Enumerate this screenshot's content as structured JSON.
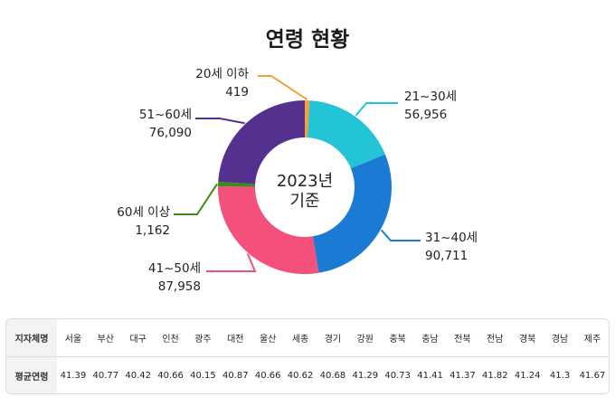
{
  "chart_data": {
    "type": "pie",
    "title": "연령 현황",
    "center_label": [
      "2023년",
      "기준"
    ],
    "series": [
      {
        "name": "20세 이하",
        "value": 419,
        "display": "419",
        "color": "#f5a13a"
      },
      {
        "name": "21~30세",
        "value": 56956,
        "display": "56,956",
        "color": "#22c4d6"
      },
      {
        "name": "31~40세",
        "value": 90711,
        "display": "90,711",
        "color": "#1a7ad4"
      },
      {
        "name": "41~50세",
        "value": 87958,
        "display": "87,958",
        "color": "#f4507c"
      },
      {
        "name": "60세 이상",
        "value": 1162,
        "display": "1,162",
        "color": "#3b8a1c"
      },
      {
        "name": "51~60세",
        "value": 76090,
        "display": "76,090",
        "color": "#54318e"
      }
    ]
  },
  "table": {
    "header_label": "지자체명",
    "row_label": "평균연령",
    "regions": [
      "서울",
      "부산",
      "대구",
      "인천",
      "광주",
      "대전",
      "울산",
      "세종",
      "경기",
      "강원",
      "충북",
      "충남",
      "전북",
      "전남",
      "경북",
      "경남",
      "제주"
    ],
    "values": [
      "41.39",
      "40.77",
      "40.42",
      "40.66",
      "40.15",
      "40.87",
      "40.66",
      "40.62",
      "40.68",
      "41.29",
      "40.73",
      "41.41",
      "41.37",
      "41.82",
      "41.24",
      "41.3",
      "41.67"
    ]
  }
}
